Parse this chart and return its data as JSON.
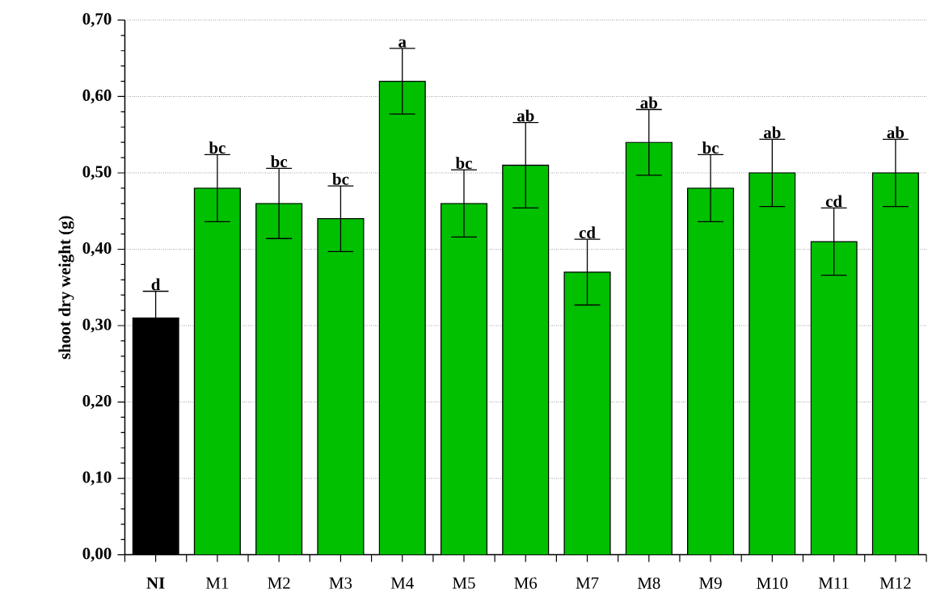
{
  "chart_data": {
    "type": "bar",
    "ylabel": "shoot dry weight (g)",
    "categories": [
      "**NI**",
      "M1",
      "M2",
      "M3",
      "M4",
      "M5",
      "M6",
      "M7",
      "M8",
      "M9",
      "M10",
      "M11",
      "M12"
    ],
    "values": [
      0.31,
      0.48,
      0.46,
      0.44,
      0.62,
      0.46,
      0.51,
      0.37,
      0.54,
      0.48,
      0.5,
      0.41,
      0.5
    ],
    "errors": [
      0.035,
      0.044,
      0.046,
      0.043,
      0.043,
      0.044,
      0.056,
      0.043,
      0.043,
      0.044,
      0.044,
      0.044,
      0.044
    ],
    "colors": [
      "#000000",
      "#00c000",
      "#00c000",
      "#00c000",
      "#00c000",
      "#00c000",
      "#00c000",
      "#00c000",
      "#00c000",
      "#00c000",
      "#00c000",
      "#00c000",
      "#00c000"
    ],
    "ylim": [
      0,
      0.7
    ],
    "yticks": [
      {
        "value": 0,
        "label": "0,00"
      },
      {
        "value": 0.1,
        "label": "0,10"
      },
      {
        "value": 0.2,
        "label": "0,20"
      },
      {
        "value": 0.3,
        "label": "0,30"
      },
      {
        "value": 0.4,
        "label": "0,40"
      },
      {
        "value": 0.5,
        "label": "0,50"
      },
      {
        "value": 0.6,
        "label": "0,60"
      },
      {
        "value": 0.7,
        "label": "0,70"
      }
    ],
    "grid": "y",
    "annotations": [
      {
        "text": "d",
        "x": "**NI**",
        "y": 0.345
      },
      {
        "text": "bc",
        "x": "M1",
        "y": 0.524
      },
      {
        "text": "bc",
        "x": "M2",
        "y": 0.506
      },
      {
        "text": "bc",
        "x": "M3",
        "y": 0.483
      },
      {
        "text": "a",
        "x": "M4",
        "y": 0.663
      },
      {
        "text": "bc",
        "x": "M5",
        "y": 0.504
      },
      {
        "text": "ab",
        "x": "M6",
        "y": 0.566
      },
      {
        "text": "cd",
        "x": "M7",
        "y": 0.413
      },
      {
        "text": "ab",
        "x": "M8",
        "y": 0.583
      },
      {
        "text": "bc",
        "x": "M9",
        "y": 0.524
      },
      {
        "text": "ab",
        "x": "M10",
        "y": 0.544
      },
      {
        "text": "cd",
        "x": "M11",
        "y": 0.454
      },
      {
        "text": "ab",
        "x": "M12",
        "y": 0.544
      }
    ]
  }
}
